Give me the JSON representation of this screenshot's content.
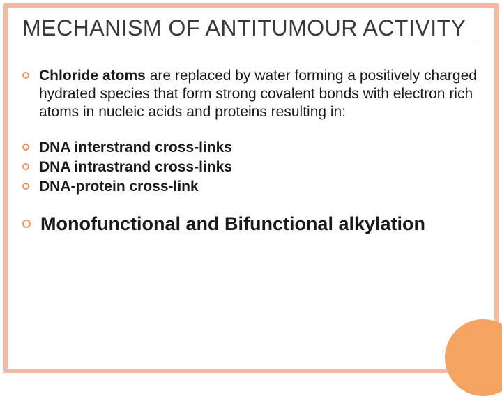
{
  "slide": {
    "title": "MECHANISM OF ANTITUMOUR ACTIVITY",
    "intro": {
      "lead": "Chloride atoms",
      "rest": " are replaced by water forming a positively charged hydrated species that form strong covalent bonds with electron rich atoms in nucleic acids and proteins resulting in:"
    },
    "items": [
      "DNA interstrand cross-links",
      "DNA intrastrand cross-links",
      "DNA-protein cross-link"
    ],
    "final": "Monofunctional and Bifunctional alkylation"
  },
  "style": {
    "frame_color": "#f5b8a0",
    "bullet_border": "#e89a6a",
    "circle_color": "#f4a460",
    "title_fontsize": 32,
    "body_fontsize": 21,
    "large_fontsize": 27,
    "text_color": "#1a1a1a",
    "title_color": "#3a3a3a",
    "background": "#ffffff"
  }
}
